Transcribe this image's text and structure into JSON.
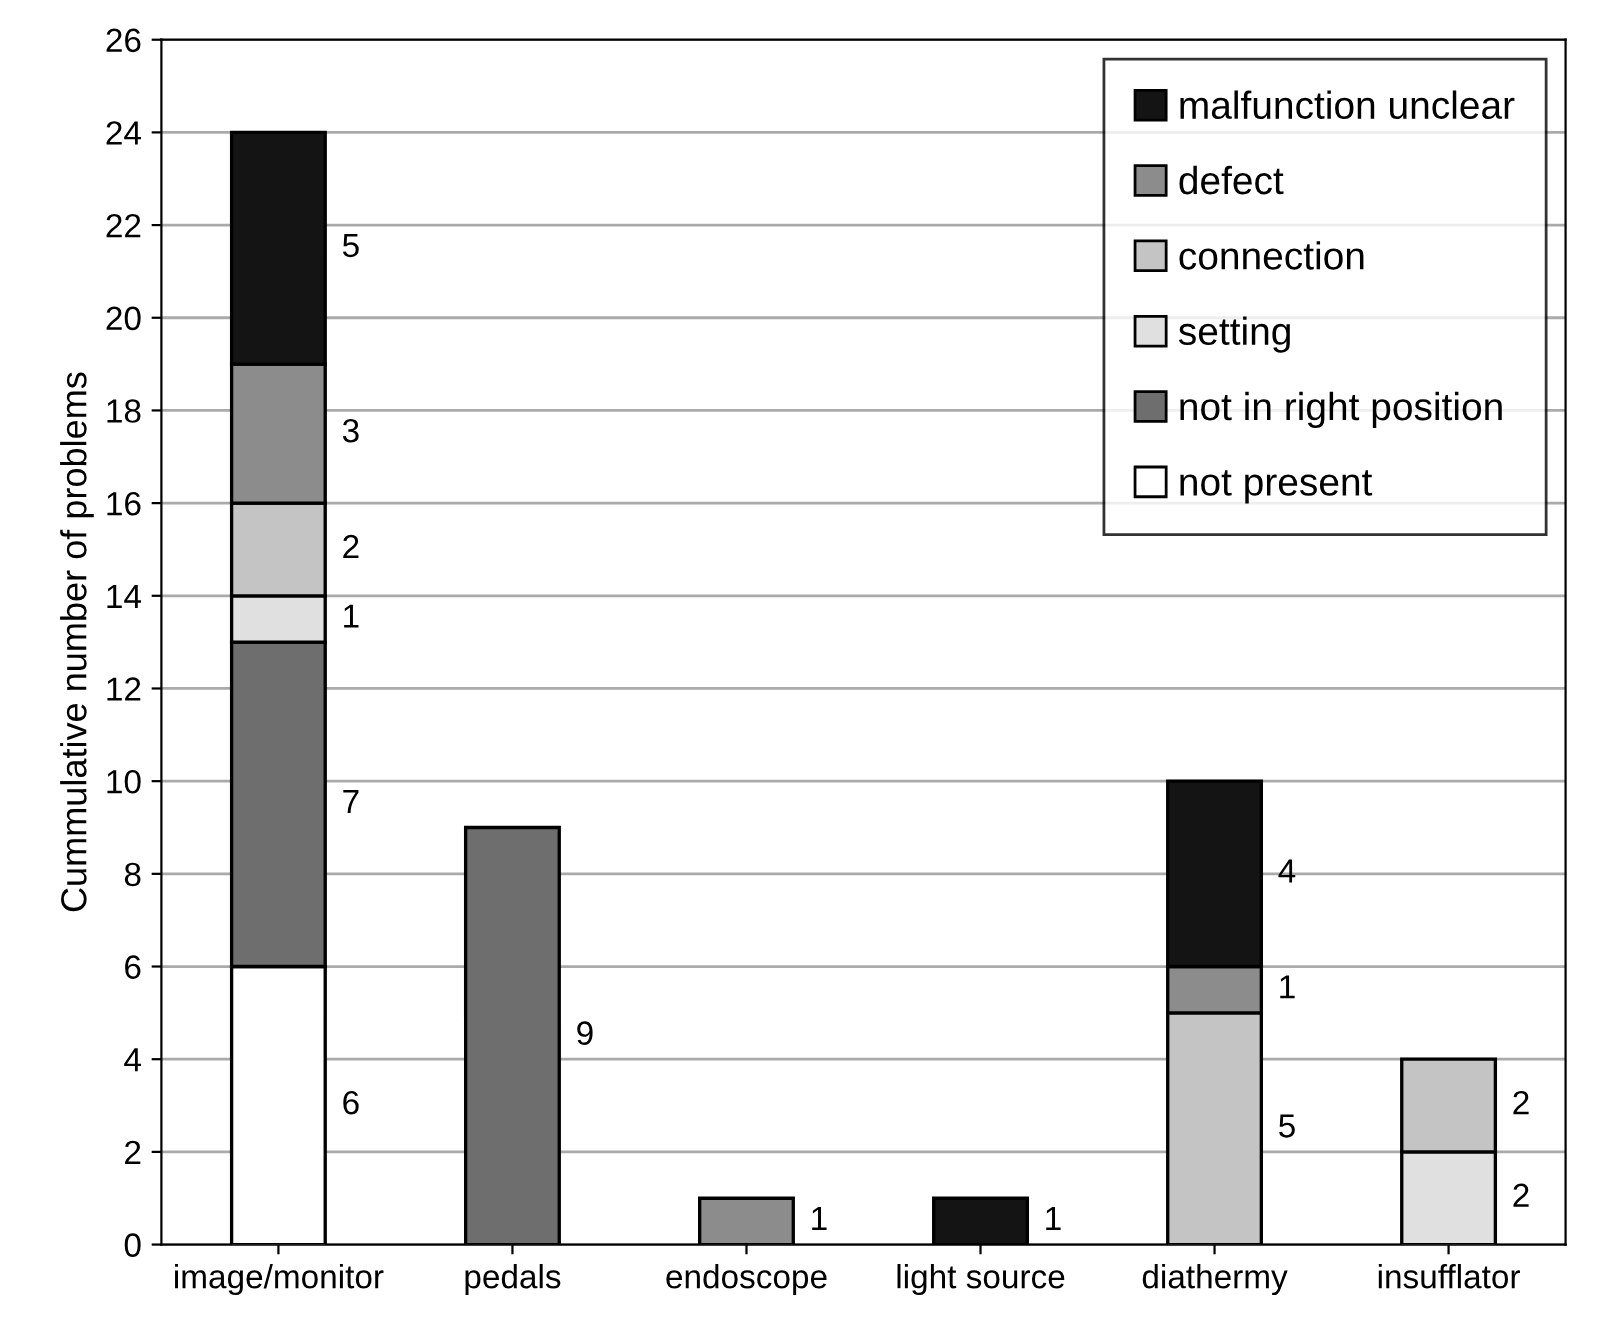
{
  "chart_data": {
    "type": "bar",
    "stacked": true,
    "ylabel": "Cummulative number of problems",
    "categories": [
      "image/monitor",
      "pedals",
      "endoscope",
      "light source",
      "diathermy",
      "insufflator"
    ],
    "series": [
      {
        "name": "not present",
        "color": "#ffffff",
        "values": [
          6,
          null,
          null,
          null,
          null,
          null
        ]
      },
      {
        "name": "not in right position",
        "color": "#6e6e6e",
        "values": [
          7,
          9,
          null,
          null,
          null,
          null
        ]
      },
      {
        "name": "setting",
        "color": "#e0e0e0",
        "values": [
          1,
          null,
          null,
          null,
          null,
          2
        ]
      },
      {
        "name": "connection",
        "color": "#c4c4c4",
        "values": [
          2,
          null,
          null,
          null,
          5,
          2
        ]
      },
      {
        "name": "defect",
        "color": "#8c8c8c",
        "values": [
          3,
          null,
          1,
          null,
          1,
          null
        ]
      },
      {
        "name": "malfunction unclear",
        "color": "#141414",
        "values": [
          5,
          null,
          null,
          1,
          4,
          null
        ]
      }
    ],
    "ylim": [
      0,
      26
    ],
    "yticks": [
      0,
      2,
      4,
      6,
      8,
      10,
      12,
      14,
      16,
      18,
      20,
      22,
      24,
      26
    ],
    "grid": "y",
    "legend": "top right",
    "data_labels": true
  }
}
